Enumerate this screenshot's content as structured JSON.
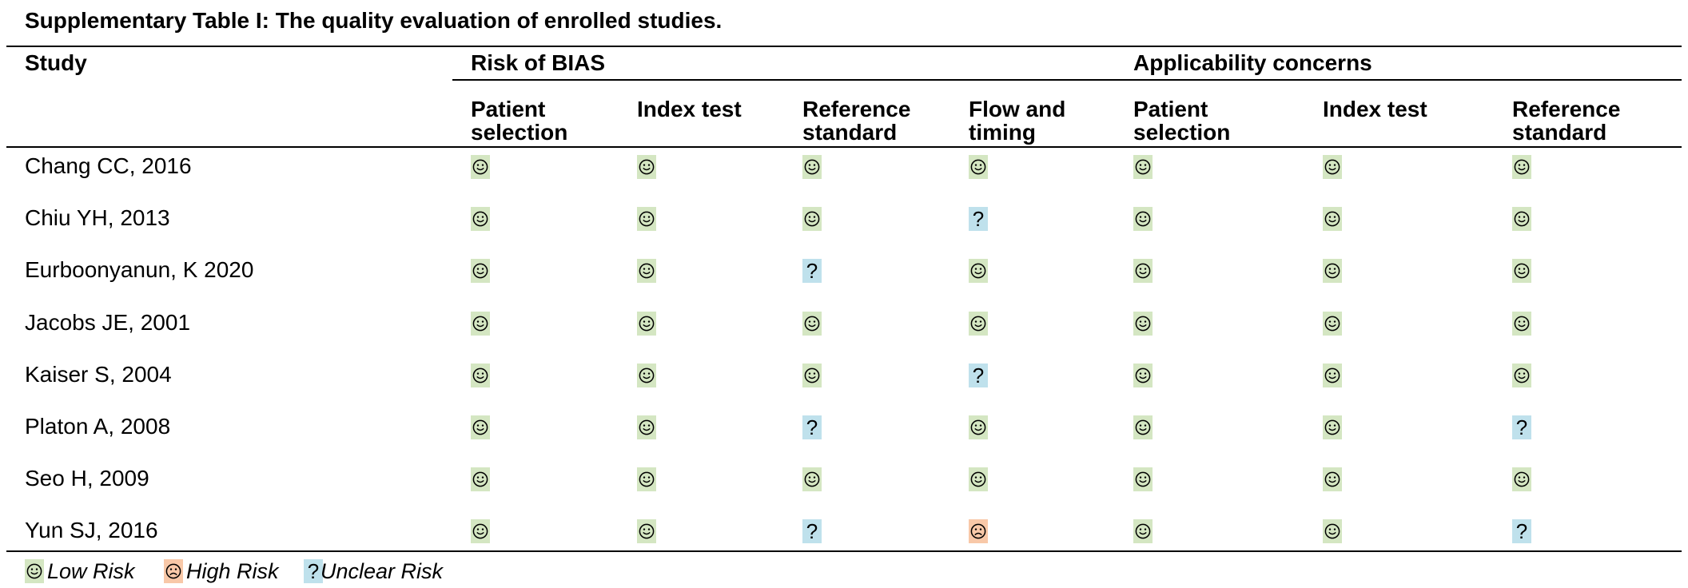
{
  "title": "Supplementary Table I: The quality evaluation of enrolled studies.",
  "header": {
    "study": "Study",
    "group_risk": "Risk of BIAS",
    "group_applicability": "Applicability concerns",
    "columns": [
      [
        "Patient",
        "selection"
      ],
      [
        "Index test",
        ""
      ],
      [
        "Reference",
        "standard"
      ],
      [
        "Flow and",
        "timing"
      ],
      [
        "Patient",
        "selection"
      ],
      [
        "Index test",
        ""
      ],
      [
        "Reference",
        "standard"
      ]
    ]
  },
  "rows": [
    {
      "study": "Chang CC, 2016",
      "ratings": [
        "low",
        "low",
        "low",
        "low",
        "low",
        "low",
        "low"
      ]
    },
    {
      "study": "Chiu YH, 2013",
      "ratings": [
        "low",
        "low",
        "low",
        "unclear",
        "low",
        "low",
        "low"
      ]
    },
    {
      "study": "Eurboonyanun, K 2020",
      "ratings": [
        "low",
        "low",
        "unclear",
        "low",
        "low",
        "low",
        "low"
      ]
    },
    {
      "study": "Jacobs JE, 2001",
      "ratings": [
        "low",
        "low",
        "low",
        "low",
        "low",
        "low",
        "low"
      ]
    },
    {
      "study": "Kaiser S, 2004",
      "ratings": [
        "low",
        "low",
        "low",
        "unclear",
        "low",
        "low",
        "low"
      ]
    },
    {
      "study": "Platon A, 2008",
      "ratings": [
        "low",
        "low",
        "unclear",
        "low",
        "low",
        "low",
        "unclear"
      ]
    },
    {
      "study": "Seo H, 2009",
      "ratings": [
        "low",
        "low",
        "low",
        "low",
        "low",
        "low",
        "low"
      ]
    },
    {
      "study": "Yun SJ, 2016",
      "ratings": [
        "low",
        "low",
        "unclear",
        "high",
        "low",
        "low",
        "unclear"
      ]
    }
  ],
  "legend": {
    "low": "Low Risk",
    "high": "High Risk",
    "unclear": "Unclear Risk"
  },
  "icons": {
    "low": "smiley-face-icon",
    "high": "frowning-face-icon",
    "unclear": "question-mark-icon"
  },
  "colors": {
    "low": "#d4e6c2",
    "high": "#f8c8a8",
    "unclear": "#bfe1ec"
  }
}
